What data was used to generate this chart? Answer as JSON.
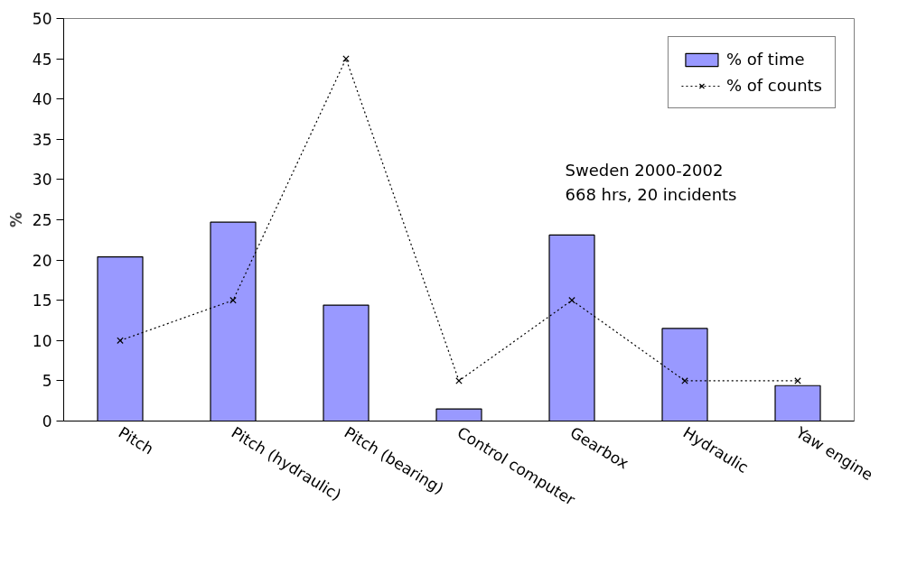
{
  "chart_data": {
    "type": "bar",
    "ylabel": "%",
    "categories": [
      "Pitch",
      "Pitch (hydraulic)",
      "Pitch (bearing)",
      "Control computer",
      "Gearbox",
      "Hydraulic",
      "Yaw engine"
    ],
    "series": [
      {
        "name": "% of time",
        "color": "#9999ff",
        "values": [
          20.4,
          24.7,
          14.4,
          1.5,
          23.1,
          11.5,
          4.4
        ]
      },
      {
        "name": "% of counts",
        "type": "line",
        "color": "#000000",
        "marker": "cross",
        "line_style": "dotted",
        "values": [
          10,
          15,
          45,
          5,
          15,
          5,
          5
        ]
      }
    ],
    "ylim": [
      0,
      50
    ],
    "yticks": [
      0,
      5,
      10,
      15,
      20,
      25,
      30,
      35,
      40,
      45,
      50
    ],
    "grid": false,
    "legend": "top right",
    "annotations": [
      "Sweden 2000-2002\n668 hrs, 20 incidents"
    ]
  }
}
